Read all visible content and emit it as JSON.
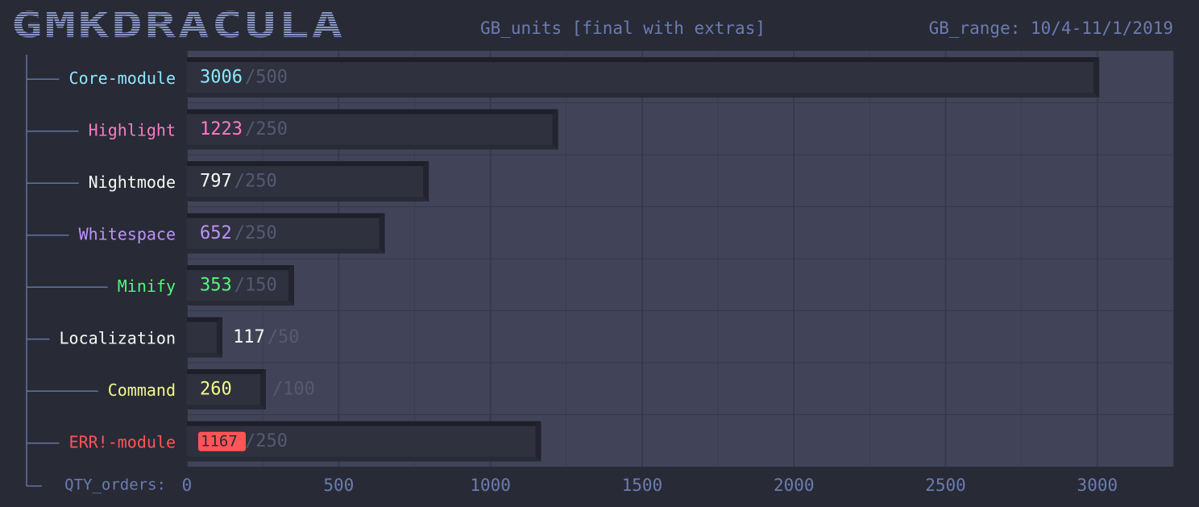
{
  "chart_data": {
    "type": "bar",
    "orientation": "horizontal",
    "title": "GMKDRACULA",
    "subtitle": "GB_units [final with extras]",
    "range_label": "GB_range: 10/4-11/1/2019",
    "x_label": "QTY_orders:",
    "categories": [
      "Core-module",
      "Highlight",
      "Nightmode",
      "Whitespace",
      "Minify",
      "Localization",
      "Command",
      "ERR!-module"
    ],
    "values": [
      3006,
      1223,
      797,
      652,
      353,
      117,
      260,
      1167
    ],
    "targets": [
      {
        "value": 500,
        "label": "/500"
      },
      {
        "value": 250,
        "label": "/250"
      },
      {
        "value": 250,
        "label": "/250"
      },
      {
        "value": 250,
        "label": "/250"
      },
      {
        "value": 150,
        "label": "/150"
      },
      {
        "value": 50,
        "label": "/50"
      },
      {
        "value": 100,
        "label": "/100"
      },
      {
        "value": 250,
        "label": "/250"
      }
    ],
    "label_colors": [
      "#8be9fd",
      "#ff79c6",
      "#f8f8f2",
      "#bd93f9",
      "#50fa7b",
      "#f8f8f2",
      "#f1fa8c",
      "#ff5555"
    ],
    "badge_colors": [
      null,
      null,
      null,
      null,
      null,
      null,
      null,
      "#ff5555"
    ],
    "color": "#2f313e",
    "xlim": [
      0,
      3250
    ],
    "xticks": [
      0,
      500,
      1000,
      1500,
      2000,
      2500,
      3000
    ],
    "minor_xticks": [
      250,
      750,
      1250,
      1750,
      2250,
      2750,
      3250
    ],
    "grid": true
  }
}
